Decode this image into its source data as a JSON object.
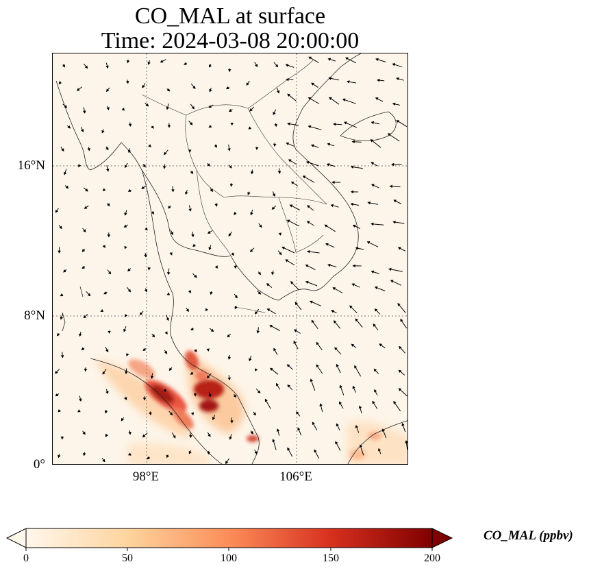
{
  "title": {
    "line1": "CO_MAL at surface",
    "line2": "Time: 2024-03-08 20:00:00"
  },
  "map": {
    "lat_range": [
      0,
      22
    ],
    "lon_range": [
      93,
      112
    ],
    "lat_ticks": [
      "16°N",
      "8°N",
      "0°"
    ],
    "lon_ticks": [
      "98°E",
      "106°E"
    ],
    "gridlines": "dotted",
    "wind_vectors": true,
    "features": [
      "coastlines",
      "country borders"
    ],
    "hotspots": [
      {
        "region": "northern Sumatra",
        "level": "high"
      },
      {
        "region": "central Sumatra",
        "level": "very high"
      },
      {
        "region": "Malay Peninsula west",
        "level": "high"
      },
      {
        "region": "Singapore area",
        "level": "moderate"
      },
      {
        "region": "western Borneo",
        "level": "low-moderate"
      }
    ]
  },
  "colorbar": {
    "label": "CO_MAL (ppbv)",
    "ticks": [
      "0",
      "50",
      "100",
      "150",
      "200"
    ],
    "min": 0,
    "max": 200,
    "extend": "both",
    "colormap": "OrRd",
    "colors": [
      "#fff7ec",
      "#fdd49e",
      "#fc8d59",
      "#d7301f",
      "#7f0000"
    ]
  }
}
